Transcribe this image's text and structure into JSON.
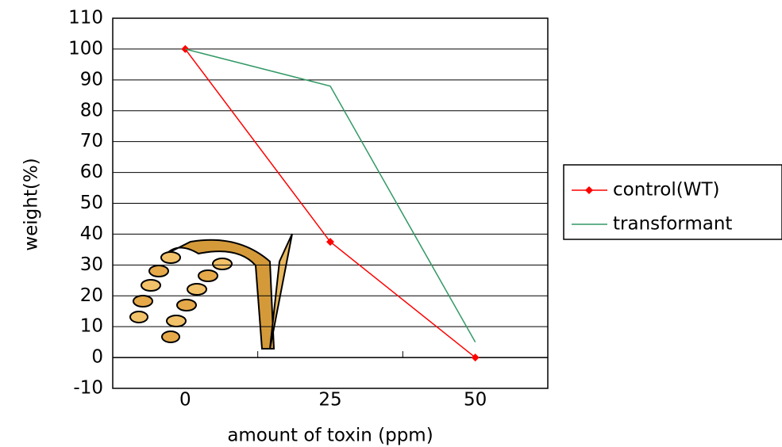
{
  "chart_data": {
    "type": "line",
    "xlabel": "amount of toxin (ppm)",
    "ylabel": "weight(%)",
    "categories": [
      "0",
      "25",
      "50"
    ],
    "series": [
      {
        "name": "control(WT)",
        "color": "#ff0000",
        "marker": "diamond",
        "values": [
          100,
          37.5,
          0
        ]
      },
      {
        "name": "transformant",
        "color": "#339966",
        "marker": "none",
        "values": [
          100,
          88,
          5
        ]
      }
    ],
    "ylim": [
      -10,
      110
    ],
    "yticks": [
      -10,
      0,
      10,
      20,
      30,
      40,
      50,
      60,
      70,
      80,
      90,
      100,
      110
    ],
    "grid": true,
    "legend": "right"
  }
}
